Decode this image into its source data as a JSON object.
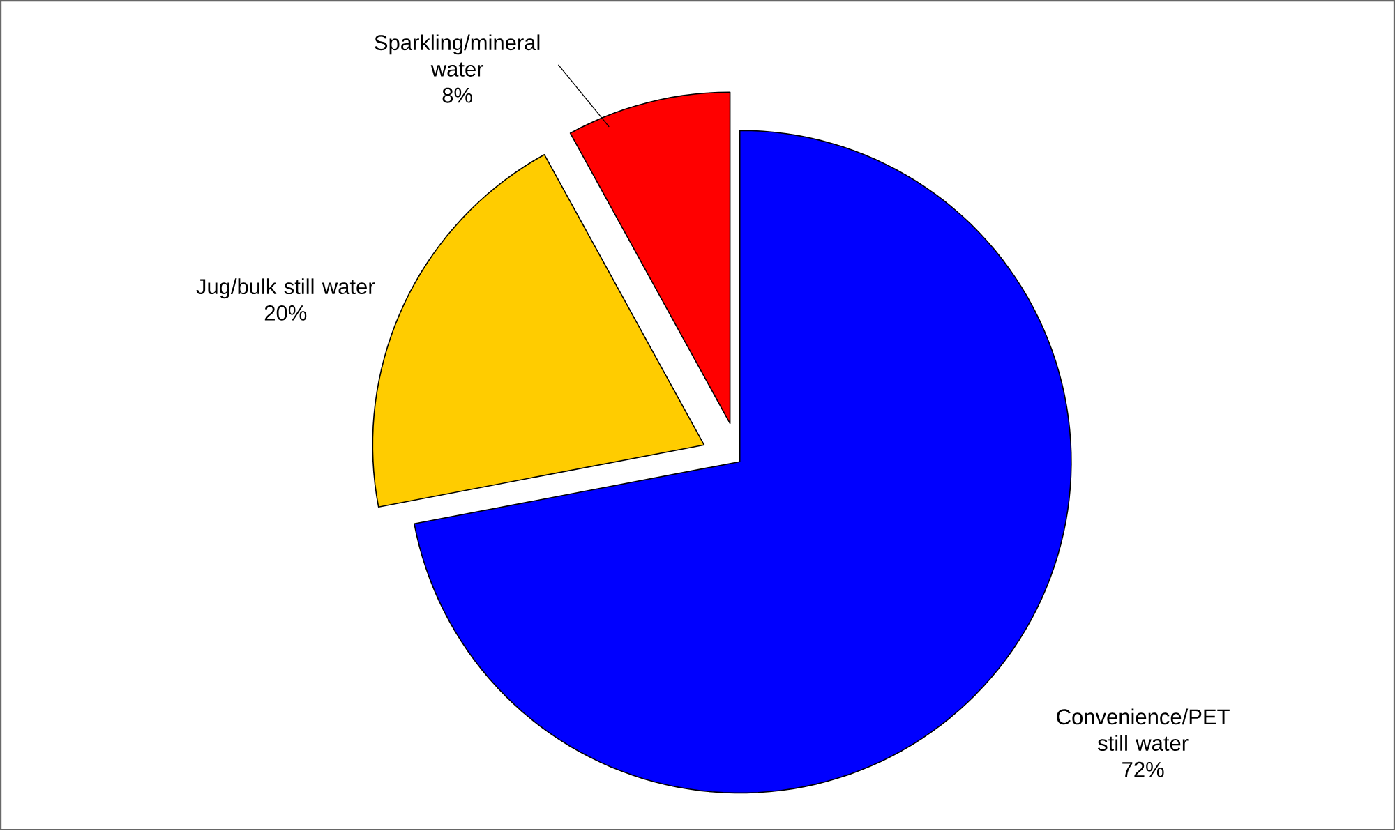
{
  "chart_data": {
    "type": "pie",
    "categories": [
      "Convenience/PET still water",
      "Jug/bulk still water",
      "Sparkling/mineral water"
    ],
    "values": [
      72,
      20,
      8
    ],
    "value_labels": [
      "72%",
      "20%",
      "8%"
    ],
    "colors": [
      "#0000ff",
      "#ffcc00",
      "#ff0000"
    ]
  }
}
